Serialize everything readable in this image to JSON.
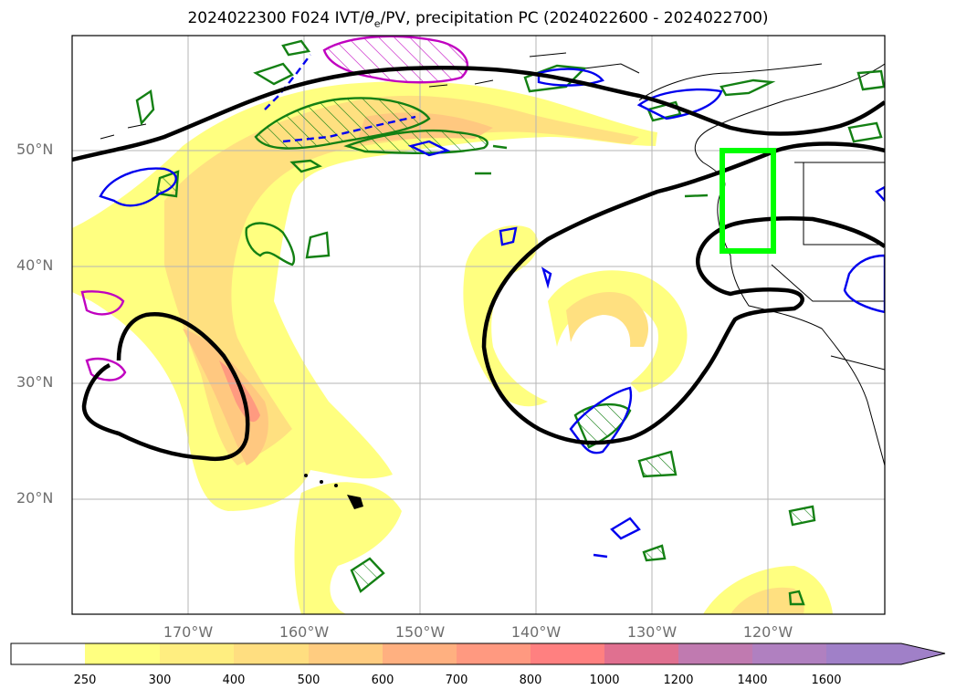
{
  "title_main": "2024022300 F024 IVT/",
  "title_theta": "θ",
  "title_sub": "e",
  "title_rest": "/PV, precipitation PC (2024022600 - 2024022700)",
  "lat_labels": [
    "50°N",
    "40°N",
    "30°N",
    "20°N"
  ],
  "lon_labels": [
    "170°W",
    "160°W",
    "150°W",
    "140°W",
    "130°W",
    "120°W"
  ],
  "colorbar": {
    "ticks": [
      "250",
      "300",
      "400",
      "500",
      "600",
      "700",
      "800",
      "1000",
      "1200",
      "1400",
      "1600"
    ],
    "colors": [
      "#ffffff",
      "#ffff80",
      "#ffee80",
      "#ffde80",
      "#ffcc80",
      "#ffb080",
      "#ff9980",
      "#ff8080",
      "#e07090",
      "#c07ab0",
      "#b080c0",
      "#a080c8"
    ],
    "extend": "max"
  },
  "overlay_colors": {
    "ivt_fill": [
      "#ffff80",
      "#ffe080",
      "#ffc880",
      "#ff9a80"
    ],
    "theta_contour": "#000000",
    "pv_green": "#138013",
    "pv_blue": "#0000ee",
    "pv_magenta": "#c000c0",
    "target_box": "#00ff00"
  }
}
